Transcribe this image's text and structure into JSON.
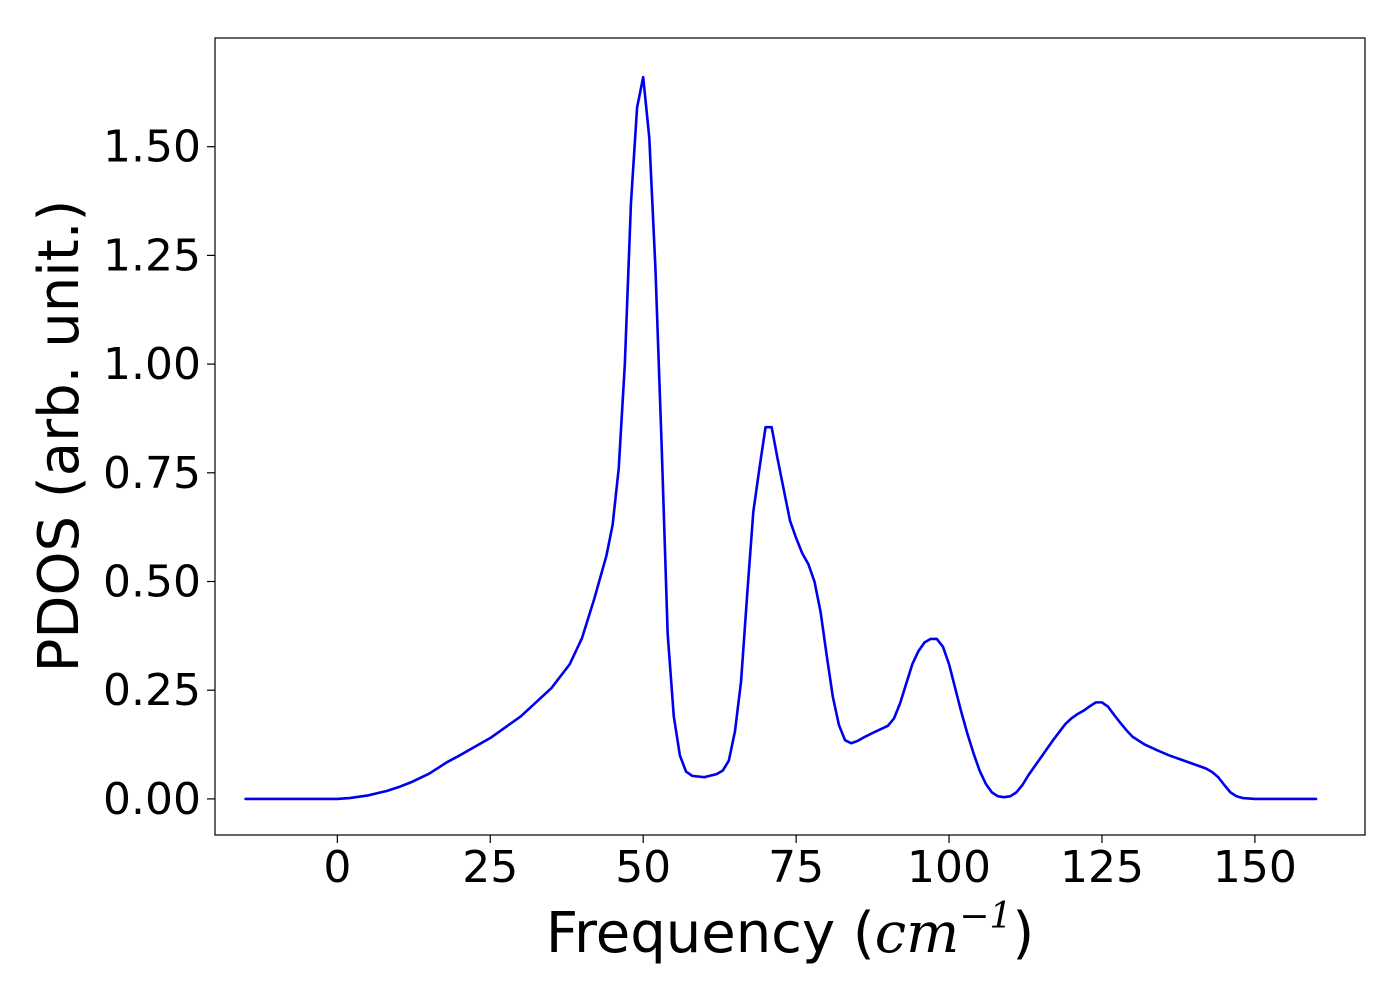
{
  "chart_data": {
    "type": "line",
    "title": "",
    "xlabel": {
      "prefix": "Frequency (",
      "unit_base": "cm",
      "unit_exponent": "−1",
      "suffix": ")"
    },
    "ylabel": "PDOS (arb. unit.)",
    "xlim": [
      -20,
      168
    ],
    "ylim": [
      -0.083,
      1.75
    ],
    "xticks": [
      {
        "value": 0,
        "label": "0"
      },
      {
        "value": 25,
        "label": "25"
      },
      {
        "value": 50,
        "label": "50"
      },
      {
        "value": 75,
        "label": "75"
      },
      {
        "value": 100,
        "label": "100"
      },
      {
        "value": 125,
        "label": "125"
      },
      {
        "value": 150,
        "label": "150"
      }
    ],
    "yticks": [
      {
        "value": 0.0,
        "label": "0.00"
      },
      {
        "value": 0.25,
        "label": "0.25"
      },
      {
        "value": 0.5,
        "label": "0.50"
      },
      {
        "value": 0.75,
        "label": "0.75"
      },
      {
        "value": 1.0,
        "label": "1.00"
      },
      {
        "value": 1.25,
        "label": "1.25"
      },
      {
        "value": 1.5,
        "label": "1.50"
      }
    ],
    "grid": false,
    "legend": "none",
    "series": [
      {
        "color": "#0000ee",
        "x": [
          -15,
          -10,
          -5,
          0,
          2,
          5,
          8,
          10,
          12,
          15,
          18,
          20,
          25,
          30,
          35,
          38,
          40,
          42,
          44,
          45,
          46,
          47,
          48,
          49,
          50,
          51,
          52,
          53,
          54,
          55,
          56,
          57,
          58,
          60,
          62,
          63,
          64,
          65,
          66,
          67,
          68,
          69,
          70,
          71,
          72,
          73,
          74,
          75,
          76,
          77,
          78,
          79,
          80,
          81,
          82,
          83,
          84,
          85,
          86,
          88,
          90,
          91,
          92,
          93,
          94,
          95,
          96,
          97,
          98,
          99,
          100,
          101,
          102,
          103,
          104,
          105,
          106,
          107,
          108,
          109,
          110,
          111,
          112,
          113,
          115,
          117,
          119,
          120,
          121,
          122,
          123,
          124,
          125,
          126,
          127,
          128,
          129,
          130,
          132,
          134,
          136,
          138,
          140,
          142,
          143,
          144,
          145,
          146,
          147,
          148,
          150,
          155,
          160
        ],
        "y": [
          0.0,
          0.0,
          0.0,
          0.0,
          0.002,
          0.008,
          0.018,
          0.027,
          0.038,
          0.058,
          0.085,
          0.1,
          0.14,
          0.19,
          0.255,
          0.31,
          0.37,
          0.46,
          0.56,
          0.63,
          0.76,
          1.0,
          1.37,
          1.59,
          1.66,
          1.52,
          1.22,
          0.82,
          0.38,
          0.19,
          0.1,
          0.063,
          0.053,
          0.05,
          0.057,
          0.065,
          0.088,
          0.155,
          0.27,
          0.47,
          0.66,
          0.76,
          0.855,
          0.855,
          0.78,
          0.71,
          0.64,
          0.6,
          0.565,
          0.54,
          0.5,
          0.43,
          0.33,
          0.235,
          0.17,
          0.135,
          0.128,
          0.133,
          0.141,
          0.155,
          0.168,
          0.185,
          0.22,
          0.265,
          0.31,
          0.34,
          0.36,
          0.368,
          0.368,
          0.35,
          0.31,
          0.255,
          0.2,
          0.15,
          0.105,
          0.065,
          0.035,
          0.015,
          0.006,
          0.004,
          0.006,
          0.015,
          0.032,
          0.055,
          0.095,
          0.135,
          0.172,
          0.185,
          0.195,
          0.203,
          0.213,
          0.222,
          0.222,
          0.212,
          0.193,
          0.175,
          0.158,
          0.143,
          0.125,
          0.112,
          0.1,
          0.09,
          0.08,
          0.07,
          0.062,
          0.05,
          0.032,
          0.015,
          0.006,
          0.002,
          0.0,
          0.0,
          0.0
        ]
      }
    ]
  }
}
